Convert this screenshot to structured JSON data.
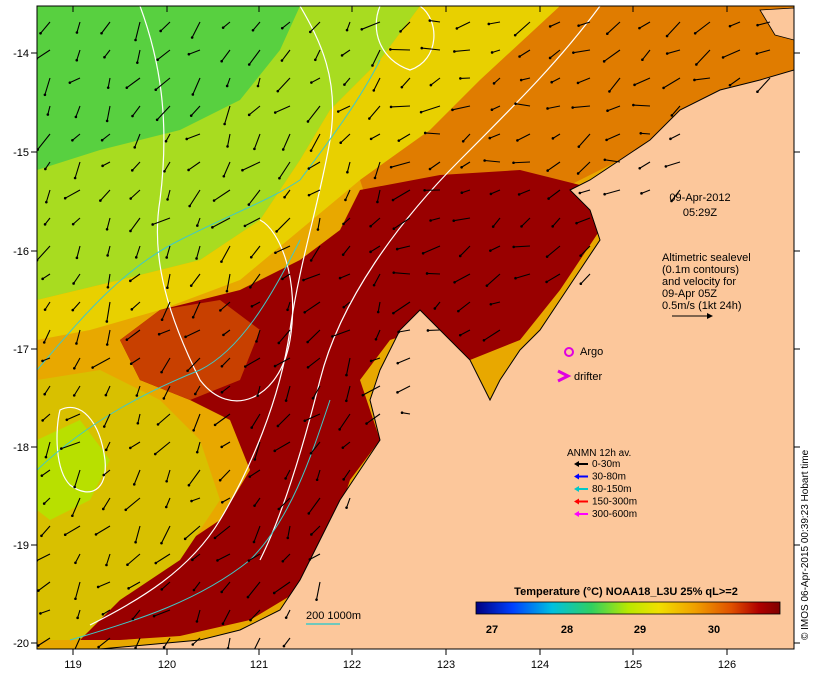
{
  "map": {
    "date": "09-Apr-2012",
    "time": "05:29Z",
    "x_ticks": [
      "119",
      "120",
      "121",
      "122",
      "123",
      "124",
      "125",
      "126"
    ],
    "y_ticks": [
      "-14",
      "-15",
      "-16",
      "-17",
      "-18",
      "-19",
      "-20"
    ],
    "altimetry_lines": [
      "Altimetric sealevel",
      "(0.1m contours)",
      "and velocity for",
      "09-Apr 05Z",
      "0.5m/s (1kt 24h)"
    ],
    "argo_label": "Argo",
    "drifter_label": "drifter",
    "anmn_title": "ANMN 12h av.",
    "anmn_items": [
      {
        "label": "0-30m",
        "color": "#000000"
      },
      {
        "label": "30-80m",
        "color": "#0000ff"
      },
      {
        "label": "80-150m",
        "color": "#00c8c8"
      },
      {
        "label": "150-300m",
        "color": "#ff0000"
      },
      {
        "label": "300-600m",
        "color": "#ff00ff"
      }
    ],
    "depth_label": "200  1000m",
    "colorbar_title": "Temperature (°C) NOAA18_L3U 25% qL>=2",
    "colorbar_ticks": [
      "27",
      "28",
      "29",
      "30"
    ],
    "credit": "© IMOS 06-Apr-2015 00:39:23 Hobart time",
    "colors": {
      "land": "#fcc79b",
      "hot": "#990000",
      "warm": "#e88000",
      "mid": "#e8c000",
      "cool": "#b8e800",
      "cold": "#40d860",
      "argo": "#e000e0",
      "contour_white": "#ffffff",
      "contour_cyan": "#40c8c8"
    }
  }
}
